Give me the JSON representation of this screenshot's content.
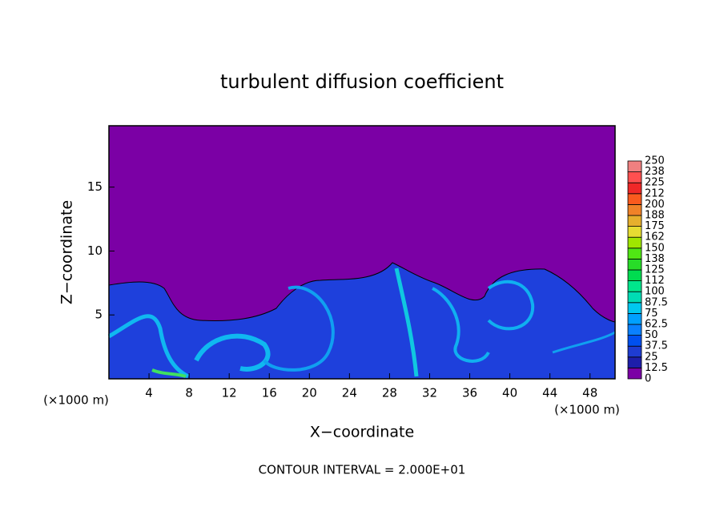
{
  "chart_data": {
    "type": "contour",
    "title": "turbulent diffusion coefficient",
    "xlabel": "X−coordinate",
    "ylabel": "Z−coordinate",
    "yunit": "(×1000 m)",
    "xunit": "(×1000 m)",
    "footer": "CONTOUR INTERVAL = 2.000E+01",
    "xlim": [
      0,
      50.5
    ],
    "ylim": [
      0,
      19.8
    ],
    "xticks": [
      4,
      8,
      12,
      16,
      20,
      24,
      28,
      32,
      36,
      40,
      44,
      48
    ],
    "yticks": [
      5,
      10,
      15
    ],
    "colorbar": {
      "levels": [
        0,
        12.5,
        25,
        37.5,
        50,
        62.5,
        75,
        87.5,
        100,
        112,
        125,
        138,
        150,
        162,
        175,
        188,
        200,
        212,
        225,
        238,
        250
      ],
      "colors": [
        "#7b00a5",
        "#1e1eaa",
        "#1e3cd2",
        "#0050f0",
        "#0a80ff",
        "#00a0ff",
        "#00c8f0",
        "#00dcb4",
        "#00e68c",
        "#00dc50",
        "#28dc28",
        "#50e614",
        "#a0e600",
        "#e6dc32",
        "#e6af2d",
        "#f08228",
        "#fa5a1e",
        "#f02828",
        "#ff5050",
        "#f08080"
      ]
    }
  }
}
